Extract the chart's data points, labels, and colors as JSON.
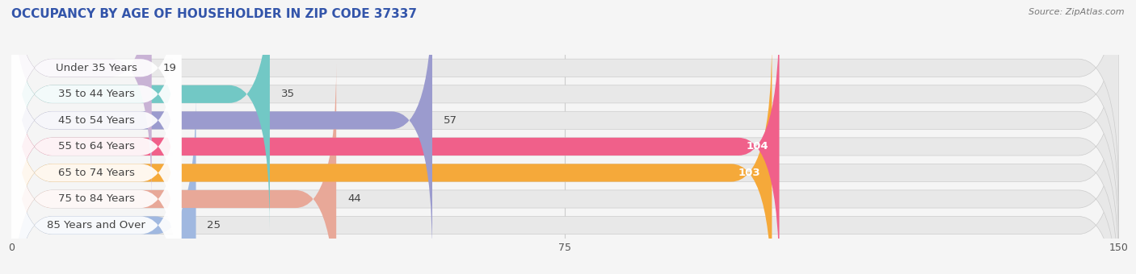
{
  "title": "OCCUPANCY BY AGE OF HOUSEHOLDER IN ZIP CODE 37337",
  "source": "Source: ZipAtlas.com",
  "categories": [
    "Under 35 Years",
    "35 to 44 Years",
    "45 to 54 Years",
    "55 to 64 Years",
    "65 to 74 Years",
    "75 to 84 Years",
    "85 Years and Over"
  ],
  "values": [
    19,
    35,
    57,
    104,
    103,
    44,
    25
  ],
  "bar_colors": [
    "#c9b3d5",
    "#72c8c5",
    "#9b9bce",
    "#f0608a",
    "#f5a93a",
    "#e8a898",
    "#a0b8e0"
  ],
  "bar_bg_color": "#e8e8e8",
  "label_bg_color": "#ffffff",
  "xlim": [
    0,
    150
  ],
  "xticks": [
    0,
    75,
    150
  ],
  "label_fontsize": 9.5,
  "value_fontsize": 9.5,
  "title_fontsize": 11,
  "bar_height": 0.68,
  "background_color": "#f5f5f5",
  "label_color_dark": "#444444",
  "label_color_white": "#ffffff",
  "white_threshold": 80,
  "title_color": "#3355aa",
  "source_color": "#777777"
}
